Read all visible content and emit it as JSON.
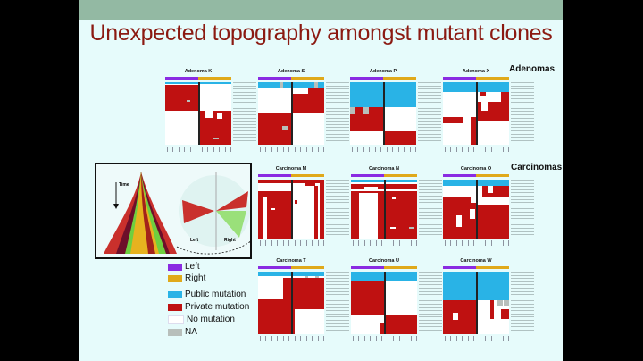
{
  "slide": {
    "title": "Unexpected topography amongst mutant clones",
    "groups": {
      "adenomas": "Adenomas",
      "carcinomas": "Carcinomas"
    },
    "panels": [
      {
        "id": "K",
        "title": "Adenoma K"
      },
      {
        "id": "S",
        "title": "Adenoma S"
      },
      {
        "id": "P",
        "title": "Adenoma P"
      },
      {
        "id": "X",
        "title": "Adenoma X"
      },
      {
        "id": "M",
        "title": "Carcinoma M"
      },
      {
        "id": "N",
        "title": "Carcinoma N"
      },
      {
        "id": "O",
        "title": "Carcinoma O"
      },
      {
        "id": "T",
        "title": "Carcinoma T"
      },
      {
        "id": "U",
        "title": "Carcinoma U"
      },
      {
        "id": "W",
        "title": "Carcinoma W"
      }
    ],
    "inset": {
      "time_label": "Time",
      "left_label": "Left",
      "right_label": "Right"
    },
    "legend": [
      {
        "label": "Left",
        "color": "#8a2be2"
      },
      {
        "label": "Right",
        "color": "#e0a91a"
      },
      {
        "label": "Public mutation",
        "color": "#29b3e6"
      },
      {
        "label": "Private mutation",
        "color": "#bf1111"
      },
      {
        "label": "No mutation",
        "color": "#ffffff"
      },
      {
        "label": "NA",
        "color": "#b8bfbb"
      }
    ]
  }
}
